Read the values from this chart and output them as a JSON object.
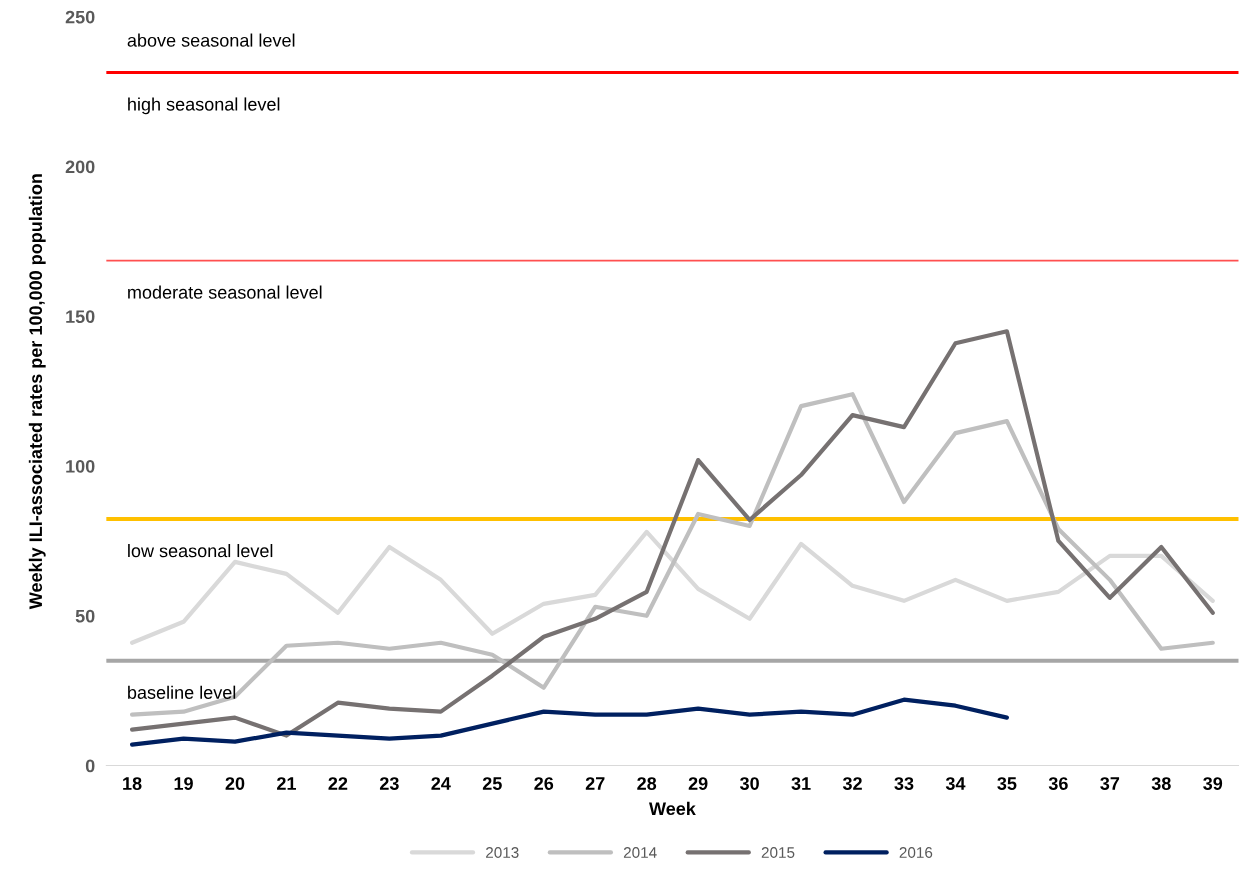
{
  "chart_data": {
    "type": "line",
    "xlabel": "Week",
    "ylabel": "Weekly ILI-associated rates per 100,000 population",
    "categories": [
      "18",
      "19",
      "20",
      "21",
      "22",
      "23",
      "24",
      "25",
      "26",
      "27",
      "28",
      "29",
      "30",
      "31",
      "32",
      "33",
      "34",
      "35",
      "36",
      "37",
      "38",
      "39"
    ],
    "series": [
      {
        "name": "2013",
        "color": "#d9d9d9",
        "values": [
          41,
          48,
          68,
          64,
          51,
          73,
          62,
          44,
          54,
          57,
          78,
          59,
          49,
          74,
          60,
          55,
          62,
          55,
          58,
          70,
          70,
          55
        ]
      },
      {
        "name": "2014",
        "color": "#bfbfbf",
        "values": [
          17,
          18,
          23,
          40,
          41,
          39,
          41,
          37,
          26,
          53,
          50,
          84,
          80,
          120,
          124,
          88,
          111,
          115,
          79,
          62,
          39,
          41
        ]
      },
      {
        "name": "2015",
        "color": "#767171",
        "values": [
          12,
          14,
          16,
          10,
          21,
          19,
          18,
          30,
          43,
          49,
          58,
          102,
          82,
          97,
          117,
          113,
          141,
          145,
          75,
          56,
          73,
          51
        ]
      },
      {
        "name": "2016",
        "color": "#002060",
        "values": [
          7,
          9,
          8,
          11,
          10,
          9,
          10,
          14,
          18,
          17,
          17,
          19,
          17,
          18,
          17,
          22,
          20,
          16,
          null,
          null,
          null,
          null
        ]
      }
    ],
    "ylim": [
      0,
      250
    ],
    "yticks": [
      0,
      50,
      100,
      150,
      200,
      250
    ],
    "ref_lines": [
      {
        "axis": "y",
        "value": 231.4,
        "color": "#ff0000"
      },
      {
        "axis": "y",
        "value": 168.6,
        "color": "#ff5050"
      },
      {
        "axis": "y",
        "value": 82.3,
        "color": "#ffc000"
      },
      {
        "axis": "y",
        "value": 35,
        "color": "#a6a6a6"
      }
    ],
    "annotations": [
      "above seasonal level",
      "high seasonal level",
      "moderate seasonal level",
      "low seasonal level",
      "baseline level"
    ],
    "grid": false,
    "legend": "bottom",
    "marker": "none",
    "line_style": "solid"
  }
}
